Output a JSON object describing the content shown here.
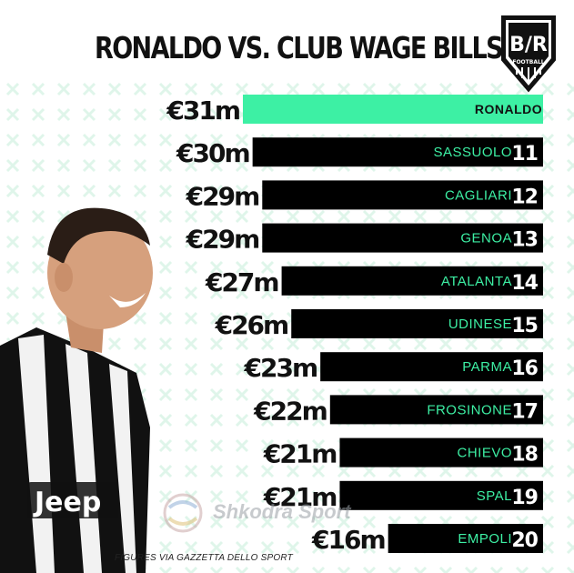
{
  "title": "RONALDO VS. CLUB WAGE BILLS",
  "logo": {
    "main": "B/R",
    "sub": "FOOTBALL"
  },
  "source": "FIGURES VIA GAZZETTA DELLO SPORT",
  "watermark": "Shkodra Sport",
  "colors": {
    "highlight": "#3df0a4",
    "bar": "#000000",
    "label_green": "#3df0a4",
    "title": "#111111"
  },
  "chart_data": {
    "type": "bar",
    "orientation": "horizontal",
    "categories": [
      "RONALDO",
      "SASSUOLO",
      "CAGLIARI",
      "GENOA",
      "ATALANTA",
      "UDINESE",
      "PARMA",
      "FROSINONE",
      "CHIEVO",
      "SPAL",
      "EMPOLI"
    ],
    "values": [
      31,
      30,
      29,
      29,
      27,
      26,
      23,
      22,
      21,
      21,
      16
    ],
    "value_labels": [
      "€31m",
      "€30m",
      "€29m",
      "€29m",
      "€27m",
      "€26m",
      "€23m",
      "€22m",
      "€21m",
      "€21m",
      "€16m"
    ],
    "ranks": [
      "",
      "11",
      "12",
      "13",
      "14",
      "15",
      "16",
      "17",
      "18",
      "19",
      "20"
    ],
    "unit": "€m",
    "highlight": "RONALDO"
  }
}
